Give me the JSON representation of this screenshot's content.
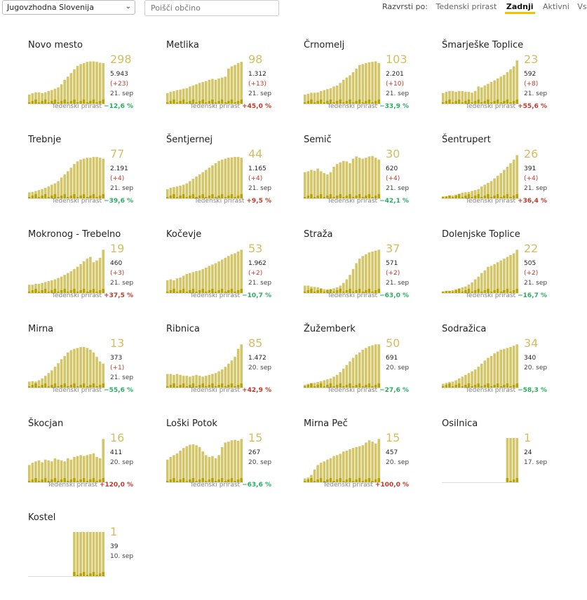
{
  "region_select": {
    "value": "Jugovzhodna Slovenija"
  },
  "search": {
    "placeholder": "Poišči občino"
  },
  "sort": {
    "label": "Razvrsti po:",
    "options": [
      "Tedenski prirast",
      "Zadnji",
      "Aktivni",
      "Vsi"
    ],
    "active": "Zadnji"
  },
  "growth_label": "Tedenski prirast",
  "colors": {
    "bar": "#d4c567",
    "bar_dark": "#b8a300",
    "positive": "#c0392b",
    "negative": "#27ae60",
    "accent": "#f2c200"
  },
  "cards": [
    {
      "name": "Novo mesto",
      "active": "298",
      "total": "5.943",
      "delta": "(+23)",
      "date": "21. sep",
      "growth": "−12,6 %",
      "growth_sign": "neg",
      "bars": [
        0.22,
        0.25,
        0.27,
        0.27,
        0.25,
        0.27,
        0.3,
        0.32,
        0.35,
        0.38,
        0.45,
        0.55,
        0.62,
        0.7,
        0.78,
        0.86,
        0.9,
        0.92,
        0.95,
        0.96,
        0.96,
        0.95,
        0.93,
        0.92
      ]
    },
    {
      "name": "Metlika",
      "active": "98",
      "total": "1.312",
      "delta": "(+13)",
      "date": "21. sep",
      "growth": "+45,0 %",
      "growth_sign": "pos",
      "bars": [
        0.25,
        0.28,
        0.3,
        0.32,
        0.33,
        0.35,
        0.36,
        0.4,
        0.42,
        0.45,
        0.48,
        0.5,
        0.52,
        0.55,
        0.57,
        0.55,
        0.58,
        0.6,
        0.62,
        0.8,
        0.85,
        0.88,
        0.92,
        0.95
      ]
    },
    {
      "name": "Črnomelj",
      "active": "103",
      "total": "2.201",
      "delta": "(+10)",
      "date": "21. sep",
      "growth": "−33,9 %",
      "growth_sign": "neg",
      "bars": [
        0.22,
        0.24,
        0.26,
        0.26,
        0.27,
        0.3,
        0.32,
        0.34,
        0.36,
        0.4,
        0.42,
        0.48,
        0.55,
        0.6,
        0.65,
        0.72,
        0.8,
        0.88,
        0.9,
        0.92,
        0.94,
        0.95,
        0.96,
        0.92
      ]
    },
    {
      "name": "Šmarješke Toplice",
      "active": "23",
      "total": "592",
      "delta": "(+8)",
      "date": "21. sep",
      "growth": "+55,6 %",
      "growth_sign": "pos",
      "bars": [
        0.25,
        0.28,
        0.3,
        0.3,
        0.28,
        0.3,
        0.3,
        0.28,
        0.28,
        0.26,
        0.3,
        0.4,
        0.38,
        0.42,
        0.46,
        0.5,
        0.54,
        0.58,
        0.62,
        0.66,
        0.72,
        0.78,
        0.85,
        0.98
      ]
    },
    {
      "name": "Trebnje",
      "active": "77",
      "total": "2.191",
      "delta": "(+4)",
      "date": "21. sep",
      "growth": "−39,6 %",
      "growth_sign": "neg",
      "bars": [
        0.15,
        0.16,
        0.18,
        0.2,
        0.22,
        0.25,
        0.28,
        0.32,
        0.35,
        0.4,
        0.48,
        0.55,
        0.62,
        0.7,
        0.78,
        0.84,
        0.88,
        0.9,
        0.92,
        0.92,
        0.94,
        0.94,
        0.92,
        0.9
      ]
    },
    {
      "name": "Šentjernej",
      "active": "44",
      "total": "1.165",
      "delta": "(+4)",
      "date": "21. sep",
      "growth": "+9,5 %",
      "growth_sign": "pos",
      "bars": [
        0.22,
        0.25,
        0.27,
        0.28,
        0.3,
        0.32,
        0.35,
        0.4,
        0.45,
        0.5,
        0.55,
        0.6,
        0.65,
        0.7,
        0.75,
        0.8,
        0.85,
        0.88,
        0.9,
        0.92,
        0.93,
        0.94,
        0.94,
        0.92
      ]
    },
    {
      "name": "Semič",
      "active": "30",
      "total": "620",
      "delta": "(+4)",
      "date": "21. sep",
      "growth": "−42,1 %",
      "growth_sign": "neg",
      "bars": [
        0.6,
        0.62,
        0.65,
        0.63,
        0.68,
        0.62,
        0.58,
        0.55,
        0.6,
        0.72,
        0.78,
        0.82,
        0.85,
        0.84,
        0.8,
        0.9,
        0.95,
        0.92,
        0.9,
        0.92,
        0.95,
        0.96,
        0.92,
        0.88
      ]
    },
    {
      "name": "Šentrupert",
      "active": "26",
      "total": "391",
      "delta": "(+4)",
      "date": "21. sep",
      "growth": "+36,4 %",
      "growth_sign": "pos",
      "bars": [
        0.06,
        0.06,
        0.08,
        0.08,
        0.1,
        0.12,
        0.14,
        0.15,
        0.16,
        0.18,
        0.2,
        0.22,
        0.28,
        0.32,
        0.36,
        0.4,
        0.46,
        0.52,
        0.58,
        0.65,
        0.72,
        0.8,
        0.88,
        0.98
      ]
    },
    {
      "name": "Mokronog - Trebelno",
      "active": "19",
      "total": "460",
      "delta": "(+3)",
      "date": "21. sep",
      "growth": "+37,5 %",
      "growth_sign": "pos",
      "bars": [
        0.2,
        0.2,
        0.22,
        0.22,
        0.24,
        0.26,
        0.28,
        0.3,
        0.32,
        0.35,
        0.38,
        0.42,
        0.46,
        0.5,
        0.55,
        0.6,
        0.66,
        0.72,
        0.78,
        0.82,
        0.7,
        0.74,
        0.8,
        0.98
      ]
    },
    {
      "name": "Kočevje",
      "active": "53",
      "total": "1.962",
      "delta": "(+2)",
      "date": "21. sep",
      "growth": "−10,7 %",
      "growth_sign": "neg",
      "bars": [
        0.3,
        0.32,
        0.3,
        0.34,
        0.36,
        0.4,
        0.44,
        0.46,
        0.48,
        0.5,
        0.52,
        0.55,
        0.58,
        0.62,
        0.65,
        0.68,
        0.72,
        0.76,
        0.8,
        0.84,
        0.88,
        0.9,
        0.94,
        0.98
      ]
    },
    {
      "name": "Straža",
      "active": "37",
      "total": "571",
      "delta": "(+2)",
      "date": "21. sep",
      "growth": "−63,0 %",
      "growth_sign": "neg",
      "bars": [
        0.18,
        0.18,
        0.16,
        0.15,
        0.14,
        0.12,
        0.1,
        0.1,
        0.1,
        0.12,
        0.14,
        0.18,
        0.24,
        0.32,
        0.42,
        0.55,
        0.68,
        0.78,
        0.84,
        0.88,
        0.92,
        0.94,
        0.96,
        0.98
      ]
    },
    {
      "name": "Dolenjske Toplice",
      "active": "22",
      "total": "505",
      "delta": "(+2)",
      "date": "21. sep",
      "growth": "−16,7 %",
      "growth_sign": "neg",
      "bars": [
        0.05,
        0.06,
        0.06,
        0.08,
        0.1,
        0.12,
        0.14,
        0.16,
        0.2,
        0.25,
        0.32,
        0.38,
        0.46,
        0.52,
        0.6,
        0.62,
        0.66,
        0.7,
        0.74,
        0.78,
        0.82,
        0.86,
        0.9,
        0.98
      ]
    },
    {
      "name": "Mirna",
      "active": "13",
      "total": "373",
      "delta": "(+1)",
      "date": "21. sep",
      "growth": "−55,6 %",
      "growth_sign": "neg",
      "bars": [
        0.15,
        0.16,
        0.15,
        0.18,
        0.22,
        0.28,
        0.34,
        0.4,
        0.48,
        0.56,
        0.65,
        0.72,
        0.8,
        0.85,
        0.88,
        0.9,
        0.92,
        0.92,
        0.9,
        0.86,
        0.8,
        0.7,
        0.6,
        0.55
      ]
    },
    {
      "name": "Ribnica",
      "active": "85",
      "total": "1.472",
      "delta": "",
      "date": "20. sep",
      "growth": "+42,9 %",
      "growth_sign": "pos",
      "bars": [
        0.32,
        0.32,
        0.3,
        0.32,
        0.3,
        0.28,
        0.28,
        0.26,
        0.28,
        0.3,
        0.28,
        0.26,
        0.28,
        0.3,
        0.32,
        0.34,
        0.38,
        0.42,
        0.48,
        0.55,
        0.62,
        0.7,
        0.88,
        0.98
      ]
    },
    {
      "name": "Žužemberk",
      "active": "50",
      "total": "691",
      "delta": "",
      "date": "20. sep",
      "growth": "−27,6 %",
      "growth_sign": "neg",
      "bars": [
        0.08,
        0.1,
        0.12,
        0.12,
        0.14,
        0.16,
        0.18,
        0.2,
        0.22,
        0.26,
        0.3,
        0.36,
        0.44,
        0.52,
        0.6,
        0.68,
        0.75,
        0.8,
        0.86,
        0.9,
        0.94,
        0.96,
        0.98,
        0.98
      ]
    },
    {
      "name": "Sodražica",
      "active": "34",
      "total": "340",
      "delta": "",
      "date": "20. sep",
      "growth": "−58,3 %",
      "growth_sign": "neg",
      "bars": [
        0.1,
        0.12,
        0.14,
        0.15,
        0.18,
        0.22,
        0.26,
        0.3,
        0.34,
        0.38,
        0.42,
        0.48,
        0.55,
        0.62,
        0.68,
        0.72,
        0.78,
        0.82,
        0.86,
        0.88,
        0.9,
        0.92,
        0.95,
        0.98
      ]
    },
    {
      "name": "Škocjan",
      "active": "16",
      "total": "411",
      "delta": "",
      "date": "20. sep",
      "growth": "+120,0 %",
      "growth_sign": "pos",
      "bars": [
        0.4,
        0.45,
        0.48,
        0.5,
        0.46,
        0.52,
        0.5,
        0.48,
        0.55,
        0.52,
        0.5,
        0.48,
        0.55,
        0.52,
        0.58,
        0.6,
        0.62,
        0.6,
        0.62,
        0.64,
        0.66,
        0.58,
        0.55,
        0.98
      ]
    },
    {
      "name": "Loški Potok",
      "active": "15",
      "total": "267",
      "delta": "",
      "date": "20. sep",
      "growth": "−63,6 %",
      "growth_sign": "neg",
      "bars": [
        0.52,
        0.58,
        0.62,
        0.66,
        0.72,
        0.78,
        0.82,
        0.85,
        0.86,
        0.84,
        0.8,
        0.7,
        0.62,
        0.58,
        0.6,
        0.55,
        0.62,
        0.8,
        0.9,
        0.92,
        0.95,
        0.96,
        0.94,
        0.98
      ]
    },
    {
      "name": "Mirna Peč",
      "active": "15",
      "total": "457",
      "delta": "",
      "date": "20. sep",
      "growth": "+100,0 %",
      "growth_sign": "pos",
      "bars": [
        0.1,
        0.12,
        0.18,
        0.3,
        0.4,
        0.45,
        0.48,
        0.52,
        0.55,
        0.6,
        0.62,
        0.65,
        0.7,
        0.72,
        0.75,
        0.78,
        0.8,
        0.82,
        0.84,
        0.9,
        0.95,
        0.92,
        0.88,
        0.98
      ]
    },
    {
      "name": "Osilnica",
      "active": "1",
      "total": "24",
      "delta": "",
      "date": "17. sep",
      "growth": "",
      "growth_sign": "",
      "bars": [
        0,
        0,
        0,
        0,
        0,
        0,
        0,
        0,
        0,
        0,
        0,
        0,
        0,
        0,
        0,
        0,
        0,
        0,
        0,
        0,
        1,
        1,
        1,
        1
      ]
    },
    {
      "name": "Kostel",
      "active": "1",
      "total": "39",
      "delta": "",
      "date": "10. sep",
      "growth": "",
      "growth_sign": "",
      "bars": [
        0,
        0,
        0,
        0,
        0,
        0,
        0,
        0,
        0,
        0,
        0,
        0,
        0,
        0,
        1,
        1,
        1,
        1,
        1,
        1,
        1,
        1,
        1,
        1
      ]
    }
  ]
}
